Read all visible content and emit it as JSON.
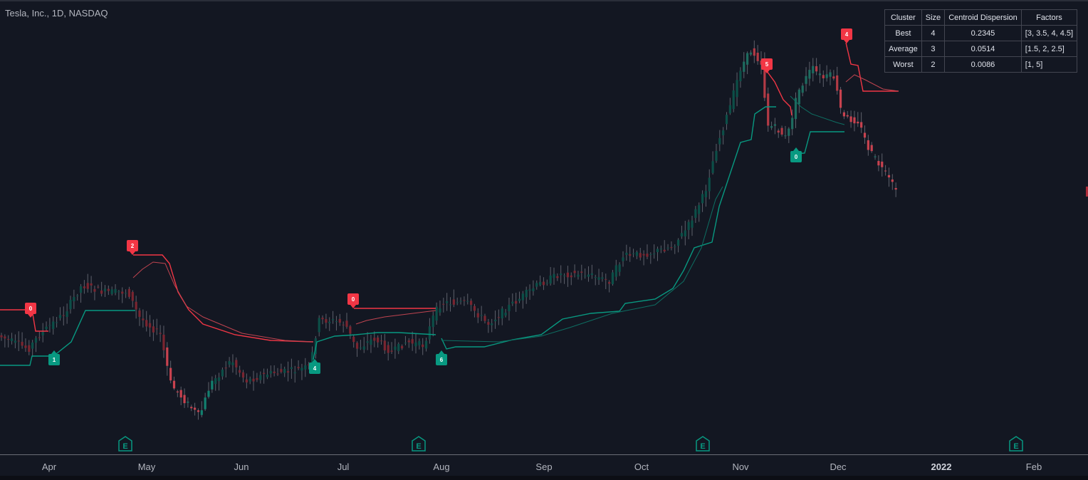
{
  "header": {
    "title": "Tesla, Inc., 1D, NASDAQ"
  },
  "colors": {
    "background": "#131722",
    "bull": "#089981",
    "bear": "#f23645",
    "bull_dim": "#0c4f48",
    "bear_dim": "#7a2530",
    "text": "#b2b5be"
  },
  "x_axis": {
    "labels": [
      {
        "text": "Apr",
        "bold": false
      },
      {
        "text": "May",
        "bold": false
      },
      {
        "text": "Jun",
        "bold": false
      },
      {
        "text": "Jul",
        "bold": false
      },
      {
        "text": "Aug",
        "bold": false
      },
      {
        "text": "Sep",
        "bold": false
      },
      {
        "text": "Oct",
        "bold": false
      },
      {
        "text": "Nov",
        "bold": false
      },
      {
        "text": "Dec",
        "bold": false
      },
      {
        "text": "2022",
        "bold": true
      },
      {
        "text": "Feb",
        "bold": false
      }
    ]
  },
  "earnings_marker": {
    "icon": "earnings-e-icon",
    "letter": "E",
    "months": [
      "Apr/May",
      "Jul/Aug",
      "Oct",
      "Jan"
    ]
  },
  "stats_table": {
    "headers": [
      "Cluster",
      "Size",
      "Centroid Dispersion",
      "Factors"
    ],
    "rows": [
      {
        "cluster": "Best",
        "size": "4",
        "dispersion": "0.2345",
        "factors": "[3, 3.5, 4, 4.5]"
      },
      {
        "cluster": "Average",
        "size": "3",
        "dispersion": "0.0514",
        "factors": "[1.5, 2, 2.5]"
      },
      {
        "cluster": "Worst",
        "size": "2",
        "dispersion": "0.0086",
        "factors": "[1, 5]"
      }
    ]
  },
  "chart_data": {
    "type": "line",
    "symbol": "TSLA",
    "interval": "1D",
    "series": [
      {
        "kind": "candlestick",
        "values_note": "daily OHLC, unlabeled price axis"
      },
      {
        "kind": "supertrend-lower",
        "color": "#089981"
      },
      {
        "kind": "supertrend-upper",
        "color": "#f23645"
      }
    ],
    "signals": [
      {
        "direction": "sell",
        "score": "0"
      },
      {
        "direction": "buy",
        "score": "1"
      },
      {
        "direction": "sell",
        "score": "2"
      },
      {
        "direction": "buy",
        "score": "4"
      },
      {
        "direction": "sell",
        "score": "0"
      },
      {
        "direction": "buy",
        "score": "6"
      },
      {
        "direction": "sell",
        "score": "5"
      },
      {
        "direction": "buy",
        "score": "0"
      },
      {
        "direction": "sell",
        "score": "4"
      }
    ],
    "x_ticks": [
      "Apr",
      "May",
      "Jun",
      "Jul",
      "Aug",
      "Sep",
      "Oct",
      "Nov",
      "Dec",
      "2022",
      "Feb"
    ]
  }
}
